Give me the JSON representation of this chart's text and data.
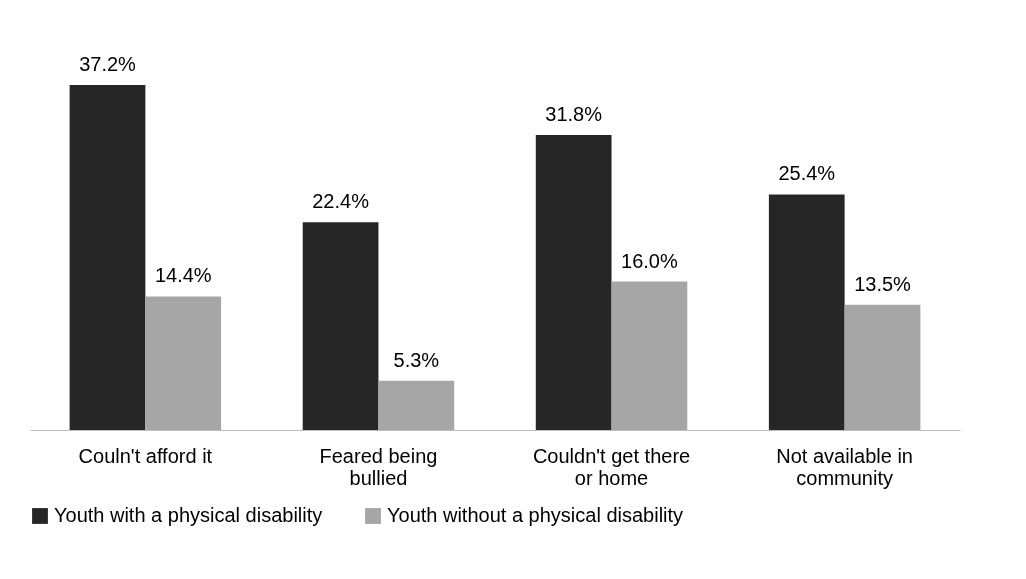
{
  "chart_data": {
    "type": "bar",
    "categories": [
      "Couln't afford it",
      "Feared being bullied",
      "Couldn't get there or home",
      "Not available in community"
    ],
    "series": [
      {
        "name": "Youth with a physical disability",
        "color": "#262626",
        "values": [
          37.2,
          22.4,
          31.8,
          25.4
        ],
        "value_labels": [
          "37.2%",
          "22.4%",
          "31.8%",
          "25.4%"
        ]
      },
      {
        "name": "Youth without a physical disability",
        "color": "#a6a6a6",
        "values": [
          14.4,
          5.3,
          16.0,
          13.5
        ],
        "value_labels": [
          "14.4%",
          "5.3%",
          "16.0%",
          "13.5%"
        ]
      }
    ],
    "legend": "bottom",
    "grid": false
  }
}
